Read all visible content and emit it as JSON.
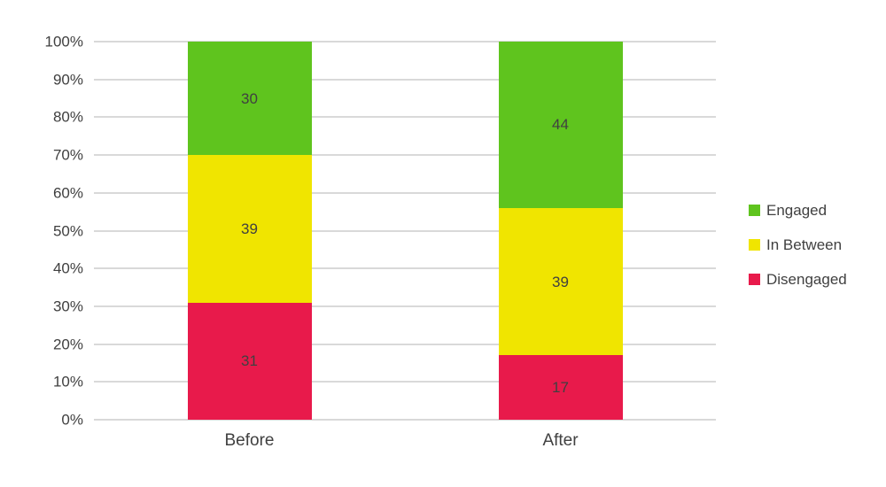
{
  "chart_data": {
    "type": "bar",
    "stacked": true,
    "percent_stacked": true,
    "title": "",
    "xlabel": "",
    "ylabel": "",
    "categories": [
      "Before",
      "After"
    ],
    "series": [
      {
        "name": "Disengaged",
        "color": "#E81A4B",
        "values": [
          31,
          17
        ]
      },
      {
        "name": "In Between",
        "color": "#F0E500",
        "values": [
          39,
          39
        ]
      },
      {
        "name": "Engaged",
        "color": "#5FC41E",
        "values": [
          30,
          44
        ]
      }
    ],
    "legend_order": [
      "Engaged",
      "In Between",
      "Disengaged"
    ],
    "legend_position": "right",
    "ylim": [
      0,
      100
    ],
    "ytick_step": 10,
    "ytick_suffix": "%",
    "grid": true,
    "gridline_color": "#D9D9D9",
    "text_color": "#404040",
    "background_color": "#FFFFFF"
  }
}
